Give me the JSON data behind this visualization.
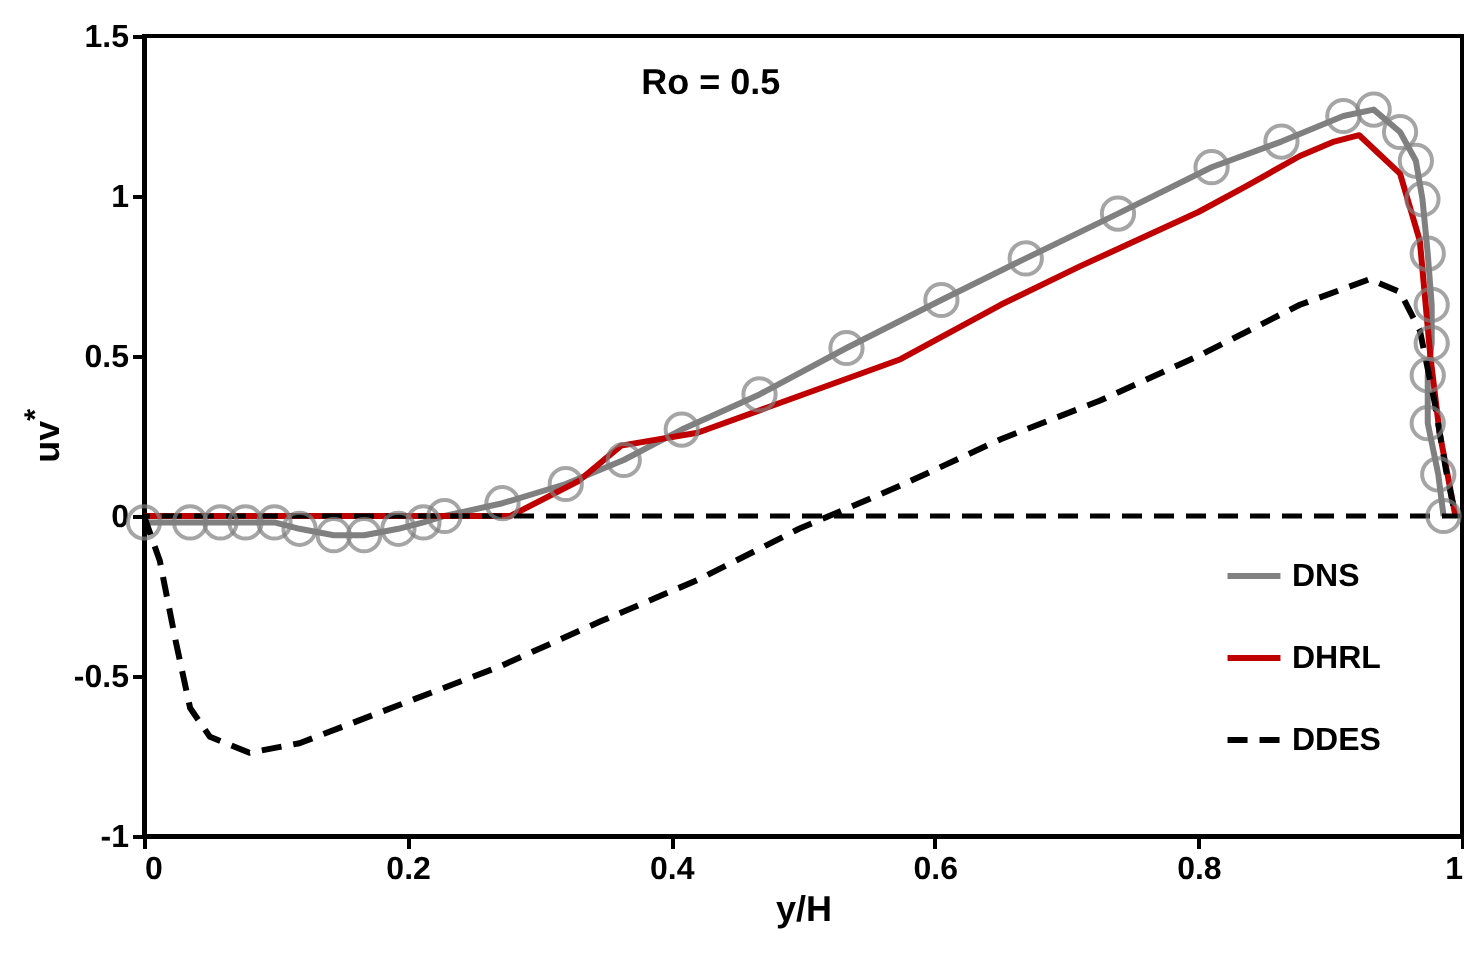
{
  "chart_data": {
    "type": "line",
    "xlabel": "y/H",
    "ylabel": "uv$^{*}$",
    "annotations": [
      "Ro = 0.5"
    ],
    "xlim": [
      0,
      1
    ],
    "xticks": [
      0,
      0.2,
      0.4,
      0.6,
      0.8,
      1
    ],
    "ylim": [
      -1,
      1.5
    ],
    "yticks": [
      -1,
      -0.5,
      0,
      0.5,
      1,
      1.5
    ],
    "grid": false,
    "legend": "bottom right",
    "ref_lines": [
      {
        "axis": "y",
        "value": 0,
        "color": "#000000",
        "line_style": "dashed"
      }
    ],
    "series": [
      {
        "name": "DNS",
        "color": "#808080",
        "marker": "circle",
        "line_style": "solid",
        "x": [
          0,
          0.035,
          0.058,
          0.077,
          0.099,
          0.118,
          0.144,
          0.167,
          0.193,
          0.212,
          0.228,
          0.272,
          0.32,
          0.364,
          0.408,
          0.467,
          0.533,
          0.605,
          0.669,
          0.739,
          0.81,
          0.863,
          0.91,
          0.933,
          0.953,
          0.965,
          0.97,
          0.974,
          0.977,
          0.977,
          0.974,
          0.974,
          0.982,
          0.986
        ],
        "values": [
          -0.02,
          -0.02,
          -0.02,
          -0.02,
          -0.02,
          -0.04,
          -0.06,
          -0.06,
          -0.04,
          -0.02,
          0,
          0.04,
          0.1,
          0.175,
          0.27,
          0.38,
          0.525,
          0.675,
          0.805,
          0.945,
          1.09,
          1.17,
          1.25,
          1.27,
          1.2,
          1.11,
          0.99,
          0.82,
          0.66,
          0.54,
          0.44,
          0.29,
          0.13,
          0
        ]
      },
      {
        "name": "DHRL",
        "color": "#c00000",
        "marker": "none",
        "line_style": "solid",
        "x": [
          0,
          0.278,
          0.33,
          0.362,
          0.42,
          0.497,
          0.574,
          0.65,
          0.71,
          0.8,
          0.836,
          0.877,
          0.903,
          0.922,
          0.953,
          0.968,
          0.976,
          0.983,
          0.995
        ],
        "values": [
          0,
          0,
          0.11,
          0.22,
          0.26,
          0.375,
          0.49,
          0.66,
          0.78,
          0.95,
          1.03,
          1.125,
          1.17,
          1.19,
          1.07,
          0.86,
          0.5,
          0.26,
          0
        ]
      },
      {
        "name": "DDES",
        "color": "#000000",
        "marker": "none",
        "line_style": "dashed",
        "x": [
          0,
          0.012,
          0.024,
          0.035,
          0.05,
          0.08,
          0.118,
          0.194,
          0.27,
          0.346,
          0.42,
          0.497,
          0.574,
          0.65,
          0.725,
          0.8,
          0.877,
          0.93,
          0.953,
          0.968,
          0.979,
          0.988,
          0.995
        ],
        "values": [
          0,
          -0.14,
          -0.39,
          -0.6,
          -0.69,
          -0.74,
          -0.71,
          -0.59,
          -0.47,
          -0.33,
          -0.2,
          -0.04,
          0.095,
          0.24,
          0.36,
          0.5,
          0.66,
          0.74,
          0.7,
          0.58,
          0.36,
          0.14,
          0
        ]
      }
    ]
  }
}
